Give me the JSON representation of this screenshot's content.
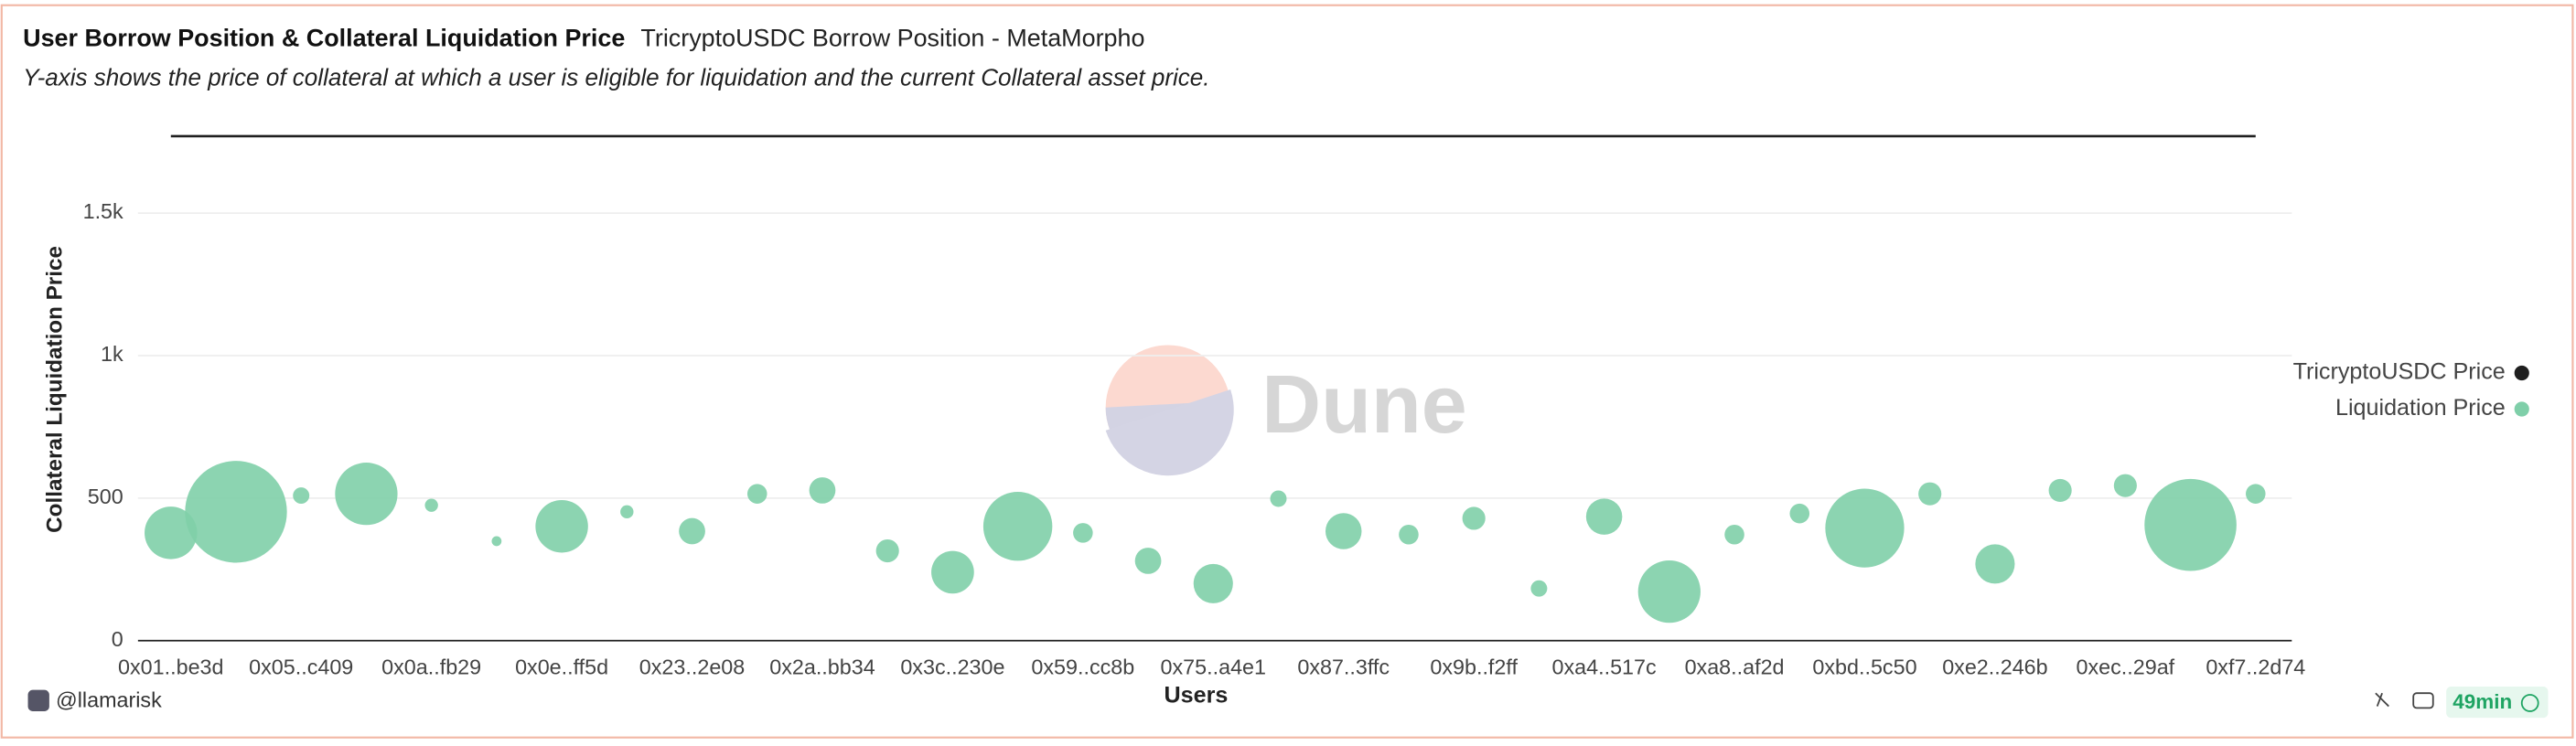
{
  "header": {
    "title": "User Borrow Position & Collateral Liquidation Price",
    "subtitle": "TricryptoUSDC Borrow Position - MetaMorpho",
    "description": "Y-axis shows the price of collateral at which a user is eligible for liquidation and the current Collateral asset price."
  },
  "watermark": "Dune",
  "footer": {
    "author": "@llamarisk",
    "age": "49min"
  },
  "chart_data": {
    "type": "bubble",
    "x_label": "Users",
    "y_label": "Collateral Liquidation Price",
    "categories": [
      "0x01..be3d",
      null,
      "0x05..c409",
      null,
      "0x0a..fb29",
      null,
      "0x0e..ff5d",
      null,
      "0x23..2e08",
      null,
      "0x2a..bb34",
      null,
      "0x3c..230e",
      null,
      "0x59..cc8b",
      null,
      "0x75..a4e1",
      null,
      "0x87..3ffc",
      null,
      "0x9b..f2ff",
      null,
      "0xa4..517c",
      null,
      "0xa8..af2d",
      null,
      "0xbd..5c50",
      null,
      "0xe2..246b",
      null,
      "0xec..29af",
      null,
      "0xf7..2d74"
    ],
    "series": [
      {
        "name": "TricryptoUSDC Price",
        "color": "#1f1f1f",
        "values": [
          1770,
          1770,
          1770,
          1770,
          1770,
          1770,
          1770,
          1770,
          1770,
          1770,
          1770,
          1770,
          1770,
          1770,
          1770,
          1770,
          1770,
          1770,
          1770,
          1770,
          1770,
          1770,
          1770,
          1770,
          1770,
          1770,
          1770,
          1770,
          1770,
          1770,
          1770,
          1770,
          1770
        ]
      },
      {
        "name": "Liquidation Price",
        "color": "#7fcfa9",
        "values": [
          378,
          452,
          509,
          515,
          475,
          349,
          401,
          452,
          384,
          515,
          527,
          315,
          240,
          401,
          378,
          280,
          200,
          498,
          384,
          372,
          429,
          183,
          435,
          172,
          372,
          446,
          395,
          515,
          269,
          527,
          544,
          406,
          515
        ],
        "sizes": [
          16,
          31,
          5,
          19,
          4,
          3,
          16,
          4,
          8,
          6,
          8,
          7,
          13,
          21,
          6,
          8,
          12,
          5,
          11,
          6,
          7,
          5,
          11,
          19,
          6,
          6,
          24,
          7,
          12,
          7,
          7,
          28,
          6
        ]
      }
    ],
    "ylim": [
      0,
      1780
    ],
    "yticks": [
      0,
      500,
      {
        "value": 1000,
        "label": "1k"
      },
      {
        "value": 1500,
        "label": "1.5k"
      }
    ],
    "grid": true,
    "legend": "right"
  }
}
